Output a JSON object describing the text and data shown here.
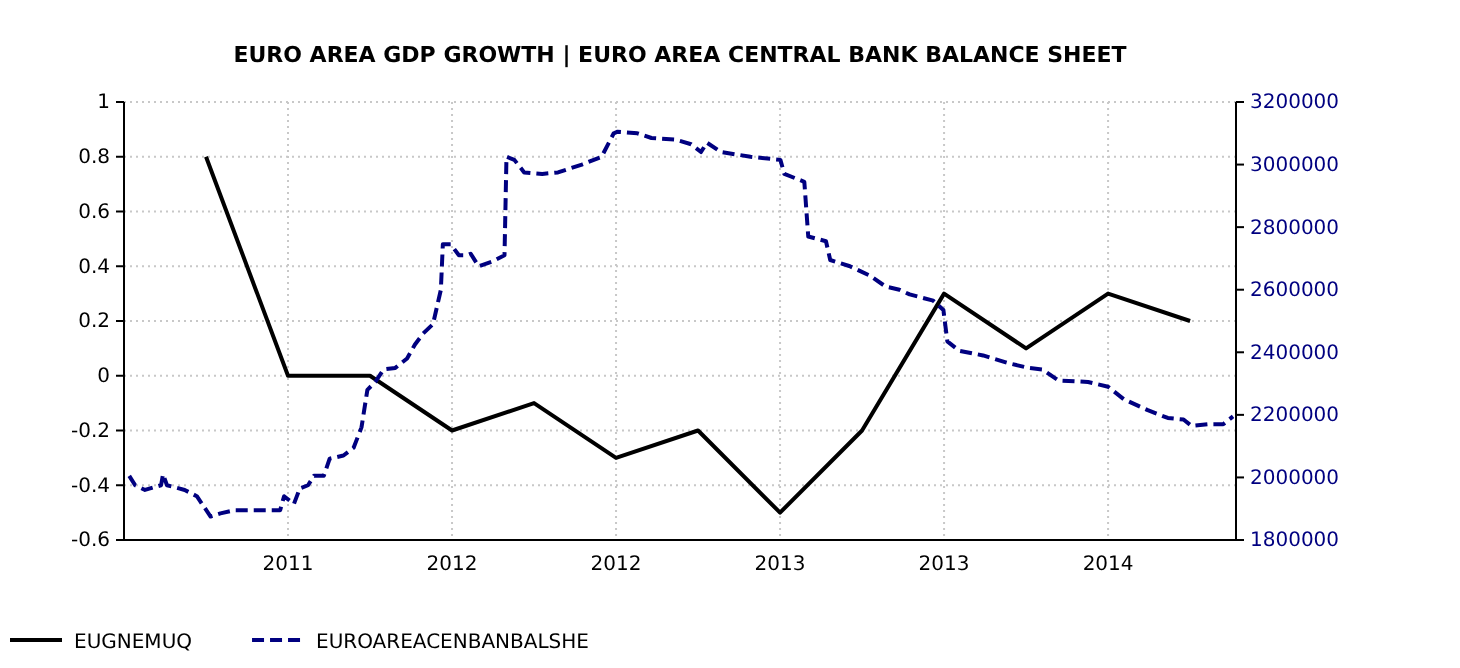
{
  "chart_data": {
    "type": "line",
    "title": "EURO AREA GDP GROWTH  |  EURO AREA CENTRAL BANK BALANCE SHEET",
    "xlim": [
      2011.0,
      2014.39
    ],
    "xticks": [
      {
        "value": 2011.5,
        "label": "2011"
      },
      {
        "value": 2012.0,
        "label": "2012"
      },
      {
        "value": 2012.5,
        "label": "2012"
      },
      {
        "value": 2013.0,
        "label": "2013"
      },
      {
        "value": 2013.5,
        "label": "2013"
      },
      {
        "value": 2014.0,
        "label": "2014"
      }
    ],
    "ylim": [
      -0.6,
      1
    ],
    "yticks": [
      -0.6,
      -0.4,
      -0.2,
      0,
      0.2,
      0.4,
      0.6,
      0.8,
      1
    ],
    "y2lim": [
      1800000,
      3200000
    ],
    "y2ticks": [
      1800000,
      2000000,
      2200000,
      2400000,
      2600000,
      2800000,
      3000000,
      3200000
    ],
    "grid": true,
    "legend": "bottom left",
    "series": [
      {
        "name": "EUGNEMUQ",
        "color": "#000000",
        "line_style": "solid",
        "x": [
          2011.25,
          2011.5,
          2011.75,
          2012.0,
          2012.25,
          2012.5,
          2012.75,
          2013.0,
          2013.25,
          2013.5,
          2013.75,
          2014.0,
          2014.25
        ],
        "values": [
          0.8,
          0,
          0,
          -0.2,
          -0.1,
          -0.3,
          -0.2,
          -0.5,
          -0.2,
          0.3,
          0.1,
          0.3,
          0.2
        ]
      },
      {
        "name": "EUROAREACENBANBALSHE",
        "color": "#000080",
        "line_style": "dashed",
        "axis": "y2",
        "x": [
          2011.016,
          2011.034,
          2011.064,
          2011.113,
          2011.119,
          2011.131,
          2011.185,
          2011.222,
          2011.264,
          2011.294,
          2011.337,
          2011.397,
          2011.476,
          2011.488,
          2011.518,
          2011.536,
          2011.561,
          2011.579,
          2011.609,
          2011.627,
          2011.669,
          2011.7,
          2011.724,
          2011.742,
          2011.766,
          2011.791,
          2011.827,
          2011.863,
          2011.887,
          2011.912,
          2011.942,
          2011.966,
          2011.972,
          2011.996,
          2012.021,
          2012.045,
          2012.057,
          2012.081,
          2012.123,
          2012.16,
          2012.166,
          2012.19,
          2012.22,
          2012.275,
          2012.323,
          2012.396,
          2012.456,
          2012.493,
          2012.505,
          2012.565,
          2012.608,
          2012.68,
          2012.729,
          2012.759,
          2012.777,
          2012.82,
          2012.91,
          2013.001,
          2013.013,
          2013.074,
          2013.086,
          2013.14,
          2013.153,
          2013.213,
          2013.274,
          2013.322,
          2013.364,
          2013.395,
          2013.467,
          2013.498,
          2013.51,
          2013.546,
          2013.619,
          2013.697,
          2013.758,
          2013.8,
          2013.849,
          2013.939,
          2014.0,
          2014.048,
          2014.121,
          2014.182,
          2014.23,
          2014.254,
          2014.303,
          2014.351,
          2014.381
        ],
        "values": [
          2005000,
          1975000,
          1960000,
          1975000,
          2010000,
          1975000,
          1960000,
          1940000,
          1875000,
          1885000,
          1895000,
          1895000,
          1895000,
          1940000,
          1915000,
          1965000,
          1975000,
          2005000,
          2005000,
          2060000,
          2070000,
          2095000,
          2160000,
          2280000,
          2305000,
          2345000,
          2350000,
          2380000,
          2425000,
          2460000,
          2490000,
          2600000,
          2745000,
          2745000,
          2710000,
          2710000,
          2715000,
          2675000,
          2690000,
          2710000,
          3025000,
          3015000,
          2975000,
          2970000,
          2975000,
          3000000,
          3025000,
          3100000,
          3105000,
          3100000,
          3085000,
          3080000,
          3065000,
          3040000,
          3070000,
          3040000,
          3025000,
          3015000,
          2970000,
          2945000,
          2770000,
          2755000,
          2695000,
          2675000,
          2645000,
          2610000,
          2600000,
          2585000,
          2565000,
          2535000,
          2435000,
          2405000,
          2390000,
          2365000,
          2350000,
          2345000,
          2310000,
          2305000,
          2290000,
          2250000,
          2215000,
          2190000,
          2185000,
          2165000,
          2170000,
          2170000,
          2195000
        ]
      }
    ]
  }
}
